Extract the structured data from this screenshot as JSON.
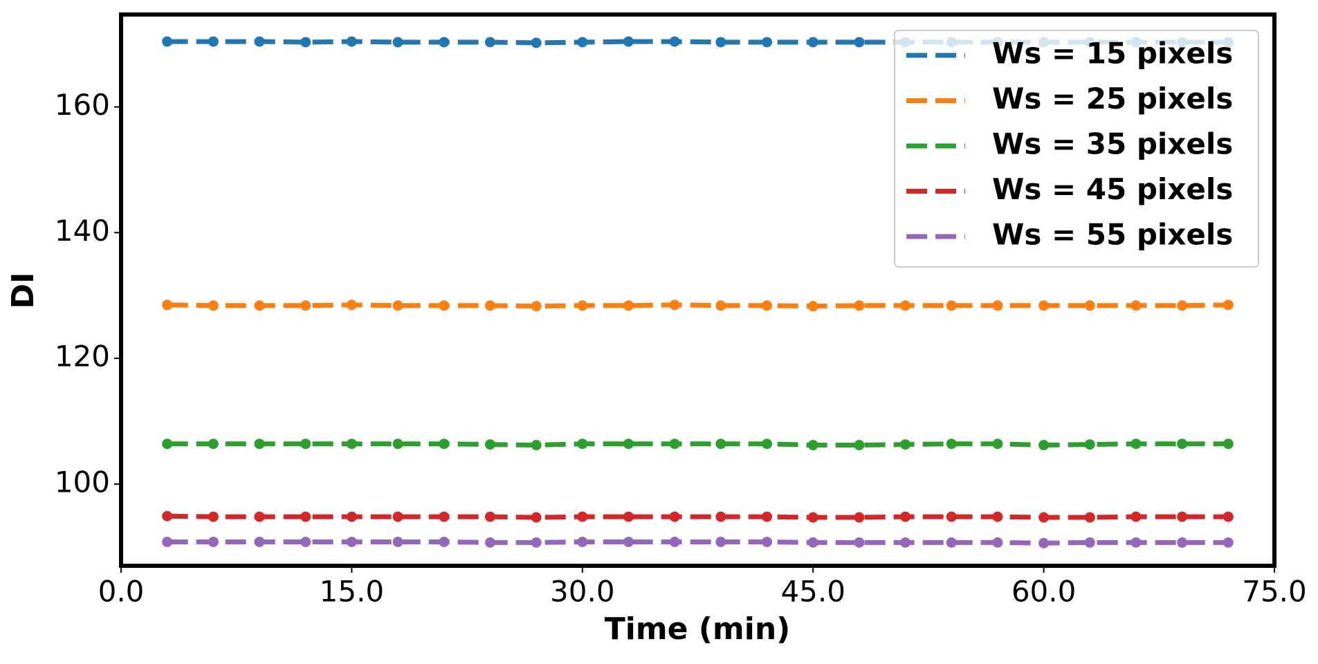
{
  "chart_data": {
    "type": "line",
    "xlabel": "Time (min)",
    "ylabel": "DI",
    "x": [
      3,
      6,
      9,
      12,
      15,
      18,
      21,
      24,
      27,
      30,
      33,
      36,
      39,
      42,
      45,
      48,
      51,
      54,
      57,
      60,
      63,
      66,
      69,
      72
    ],
    "xlim": [
      0,
      75
    ],
    "xticks": [
      {
        "value": 0,
        "label": "0.0"
      },
      {
        "value": 15,
        "label": "15.0"
      },
      {
        "value": 30,
        "label": "30.0"
      },
      {
        "value": 45,
        "label": "45.0"
      },
      {
        "value": 60,
        "label": "60.0"
      },
      {
        "value": 75,
        "label": "75.0"
      }
    ],
    "ylim": [
      87,
      174.7
    ],
    "yticks": [
      100,
      120,
      140,
      160
    ],
    "legend": "upper right",
    "series": [
      {
        "name": "Ws = 15 pixels",
        "color": "#1f77b4",
        "values": [
          170.4,
          170.4,
          170.4,
          170.3,
          170.4,
          170.3,
          170.3,
          170.3,
          170.2,
          170.3,
          170.4,
          170.4,
          170.3,
          170.3,
          170.3,
          170.3,
          170.3,
          170.3,
          170.3,
          170.3,
          170.3,
          170.3,
          170.3,
          170.3
        ]
      },
      {
        "name": "Ws = 25 pixels",
        "color": "#ff7f0e",
        "values": [
          128.5,
          128.4,
          128.4,
          128.4,
          128.5,
          128.4,
          128.4,
          128.4,
          128.3,
          128.4,
          128.4,
          128.5,
          128.4,
          128.4,
          128.3,
          128.4,
          128.4,
          128.4,
          128.4,
          128.4,
          128.4,
          128.4,
          128.4,
          128.5
        ]
      },
      {
        "name": "Ws = 35 pixels",
        "color": "#2ca02c",
        "values": [
          106.4,
          106.4,
          106.4,
          106.4,
          106.4,
          106.4,
          106.4,
          106.3,
          106.2,
          106.4,
          106.4,
          106.4,
          106.4,
          106.4,
          106.2,
          106.2,
          106.3,
          106.4,
          106.4,
          106.2,
          106.3,
          106.4,
          106.4,
          106.4
        ]
      },
      {
        "name": "Ws = 45 pixels",
        "color": "#d62728",
        "values": [
          94.9,
          94.8,
          94.8,
          94.8,
          94.8,
          94.8,
          94.8,
          94.8,
          94.7,
          94.8,
          94.8,
          94.8,
          94.8,
          94.8,
          94.7,
          94.7,
          94.8,
          94.8,
          94.8,
          94.7,
          94.7,
          94.8,
          94.8,
          94.8
        ]
      },
      {
        "name": "Ws = 55 pixels",
        "color": "#9467bd",
        "values": [
          90.8,
          90.8,
          90.8,
          90.8,
          90.8,
          90.8,
          90.8,
          90.7,
          90.7,
          90.8,
          90.8,
          90.8,
          90.8,
          90.8,
          90.7,
          90.7,
          90.7,
          90.7,
          90.7,
          90.6,
          90.7,
          90.7,
          90.7,
          90.7
        ]
      }
    ]
  }
}
